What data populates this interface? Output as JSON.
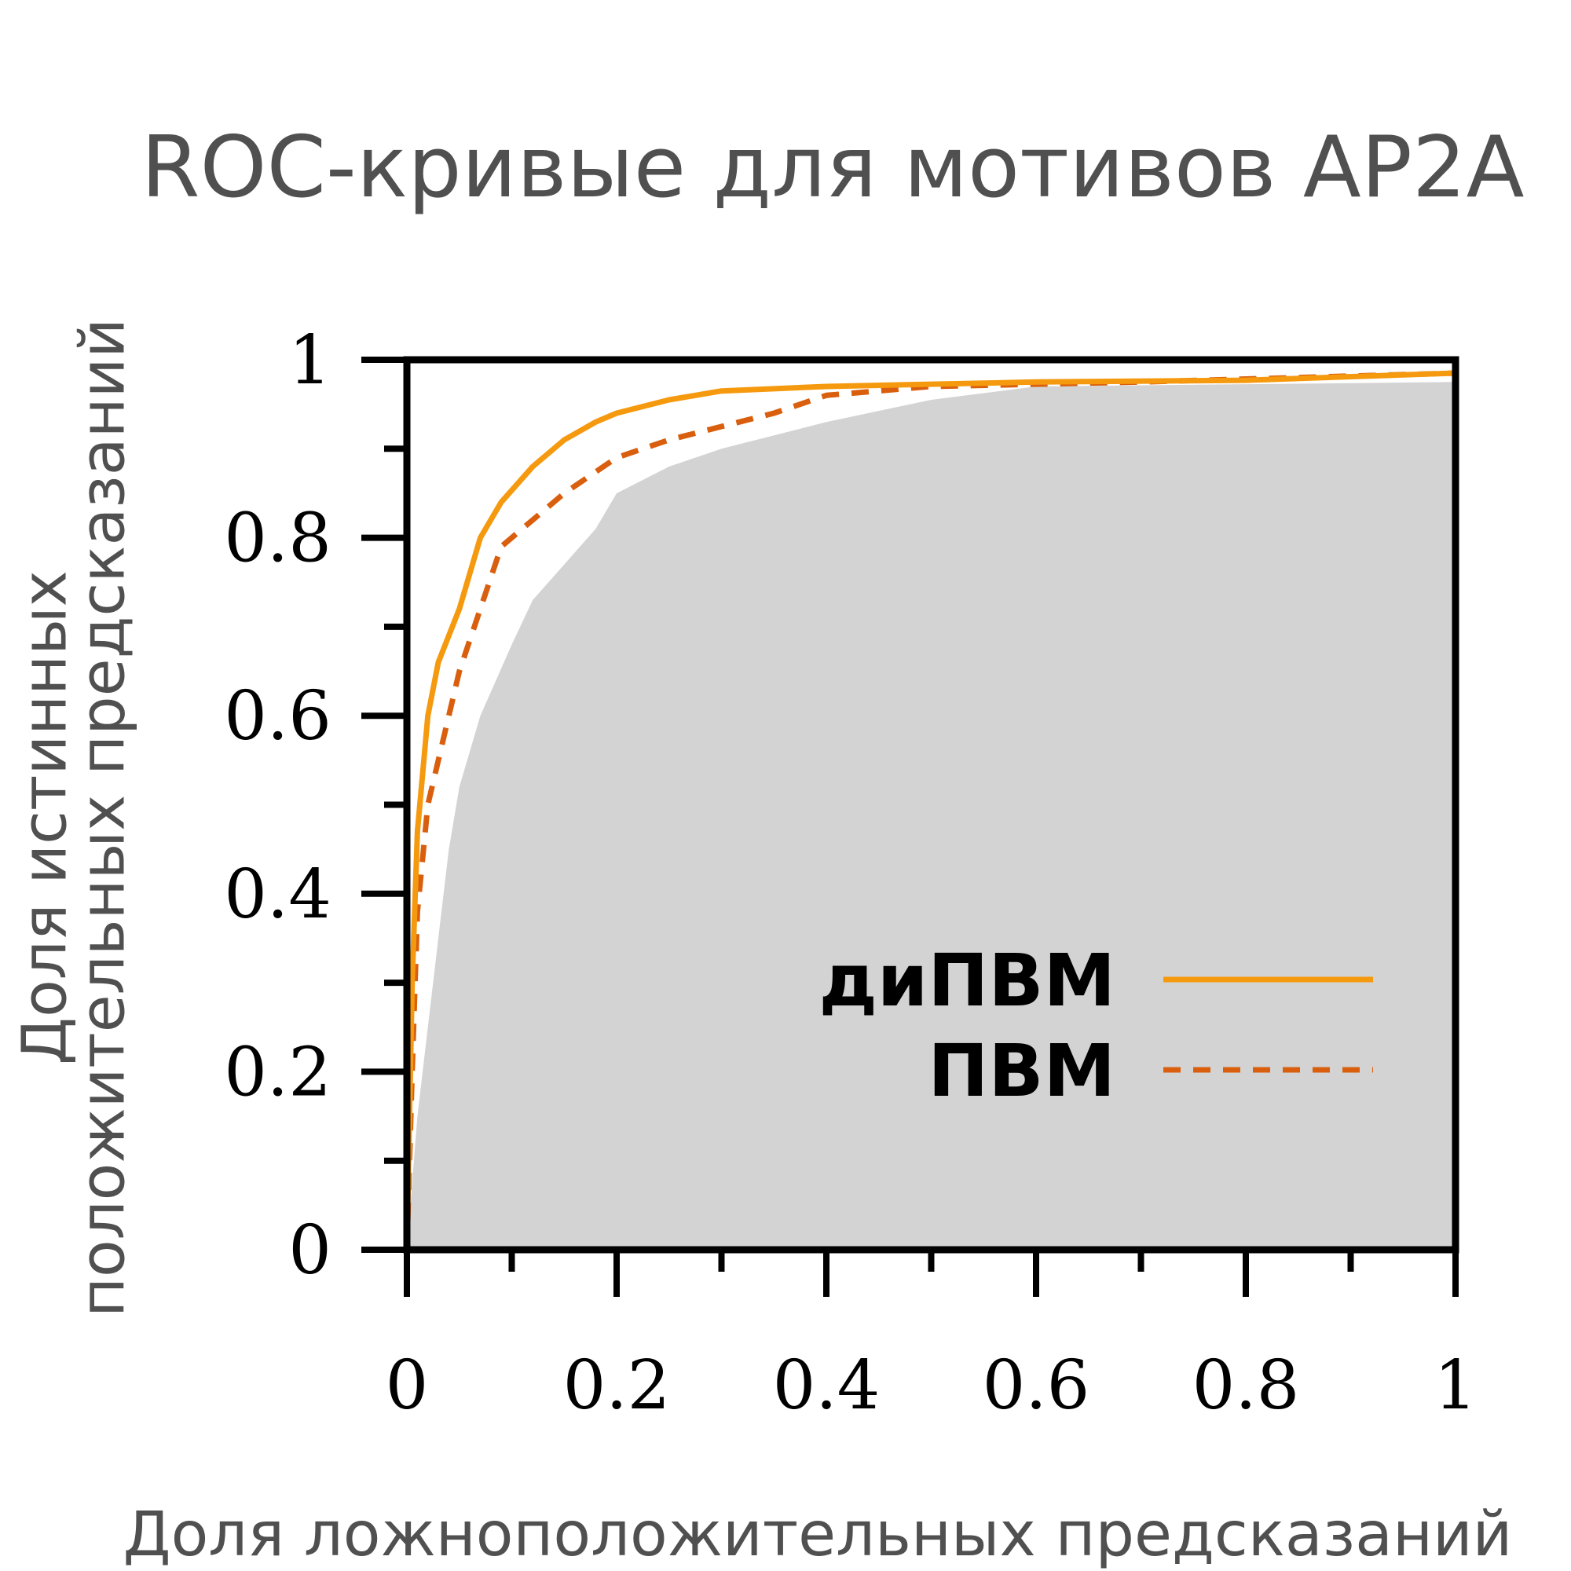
{
  "chart_data": {
    "type": "line",
    "title": "ROC-кривые для мотивов AP2A",
    "xlabel": "Доля ложноположительных предсказаний",
    "ylabel": [
      "Доля истинных",
      "положительных предсказаний"
    ],
    "xlim": [
      0,
      1
    ],
    "ylim": [
      0,
      1
    ],
    "xticks": [
      0,
      0.2,
      0.4,
      0.6,
      0.8,
      1
    ],
    "yticks": [
      0,
      0.2,
      0.4,
      0.6,
      0.8,
      1
    ],
    "xminorticks": [
      0.1,
      0.3,
      0.5,
      0.7,
      0.9
    ],
    "yminorticks": [
      0.1,
      0.3,
      0.5,
      0.7,
      0.9
    ],
    "legend": "lower right",
    "series": [
      {
        "kind": "area",
        "color": "#d3d3d3",
        "x": [
          0,
          0.01,
          0.02,
          0.03,
          0.04,
          0.05,
          0.07,
          0.1,
          0.12,
          0.15,
          0.18,
          0.2,
          0.25,
          0.3,
          0.4,
          0.5,
          0.6,
          1
        ],
        "values": [
          0,
          0.15,
          0.25,
          0.35,
          0.45,
          0.52,
          0.6,
          0.68,
          0.73,
          0.77,
          0.81,
          0.85,
          0.88,
          0.9,
          0.93,
          0.955,
          0.97,
          0.975
        ]
      },
      {
        "name": "ПВМ",
        "kind": "line",
        "dash": true,
        "color": "#d95f0e",
        "x": [
          0,
          0.005,
          0.01,
          0.02,
          0.04,
          0.05,
          0.07,
          0.09,
          0.12,
          0.15,
          0.2,
          0.25,
          0.3,
          0.35,
          0.4,
          0.5,
          0.7,
          1
        ],
        "values": [
          0,
          0.2,
          0.38,
          0.5,
          0.6,
          0.65,
          0.72,
          0.79,
          0.82,
          0.85,
          0.89,
          0.91,
          0.925,
          0.94,
          0.96,
          0.97,
          0.975,
          0.985
        ]
      },
      {
        "name": "диПВМ",
        "kind": "line",
        "dash": false,
        "color": "#f5990e",
        "x": [
          0,
          0.005,
          0.01,
          0.02,
          0.03,
          0.05,
          0.07,
          0.09,
          0.12,
          0.15,
          0.18,
          0.2,
          0.25,
          0.3,
          0.4,
          0.6,
          0.8,
          1
        ],
        "values": [
          0,
          0.3,
          0.47,
          0.6,
          0.66,
          0.72,
          0.8,
          0.84,
          0.88,
          0.91,
          0.93,
          0.94,
          0.955,
          0.965,
          0.97,
          0.975,
          0.977,
          0.985
        ]
      }
    ]
  }
}
